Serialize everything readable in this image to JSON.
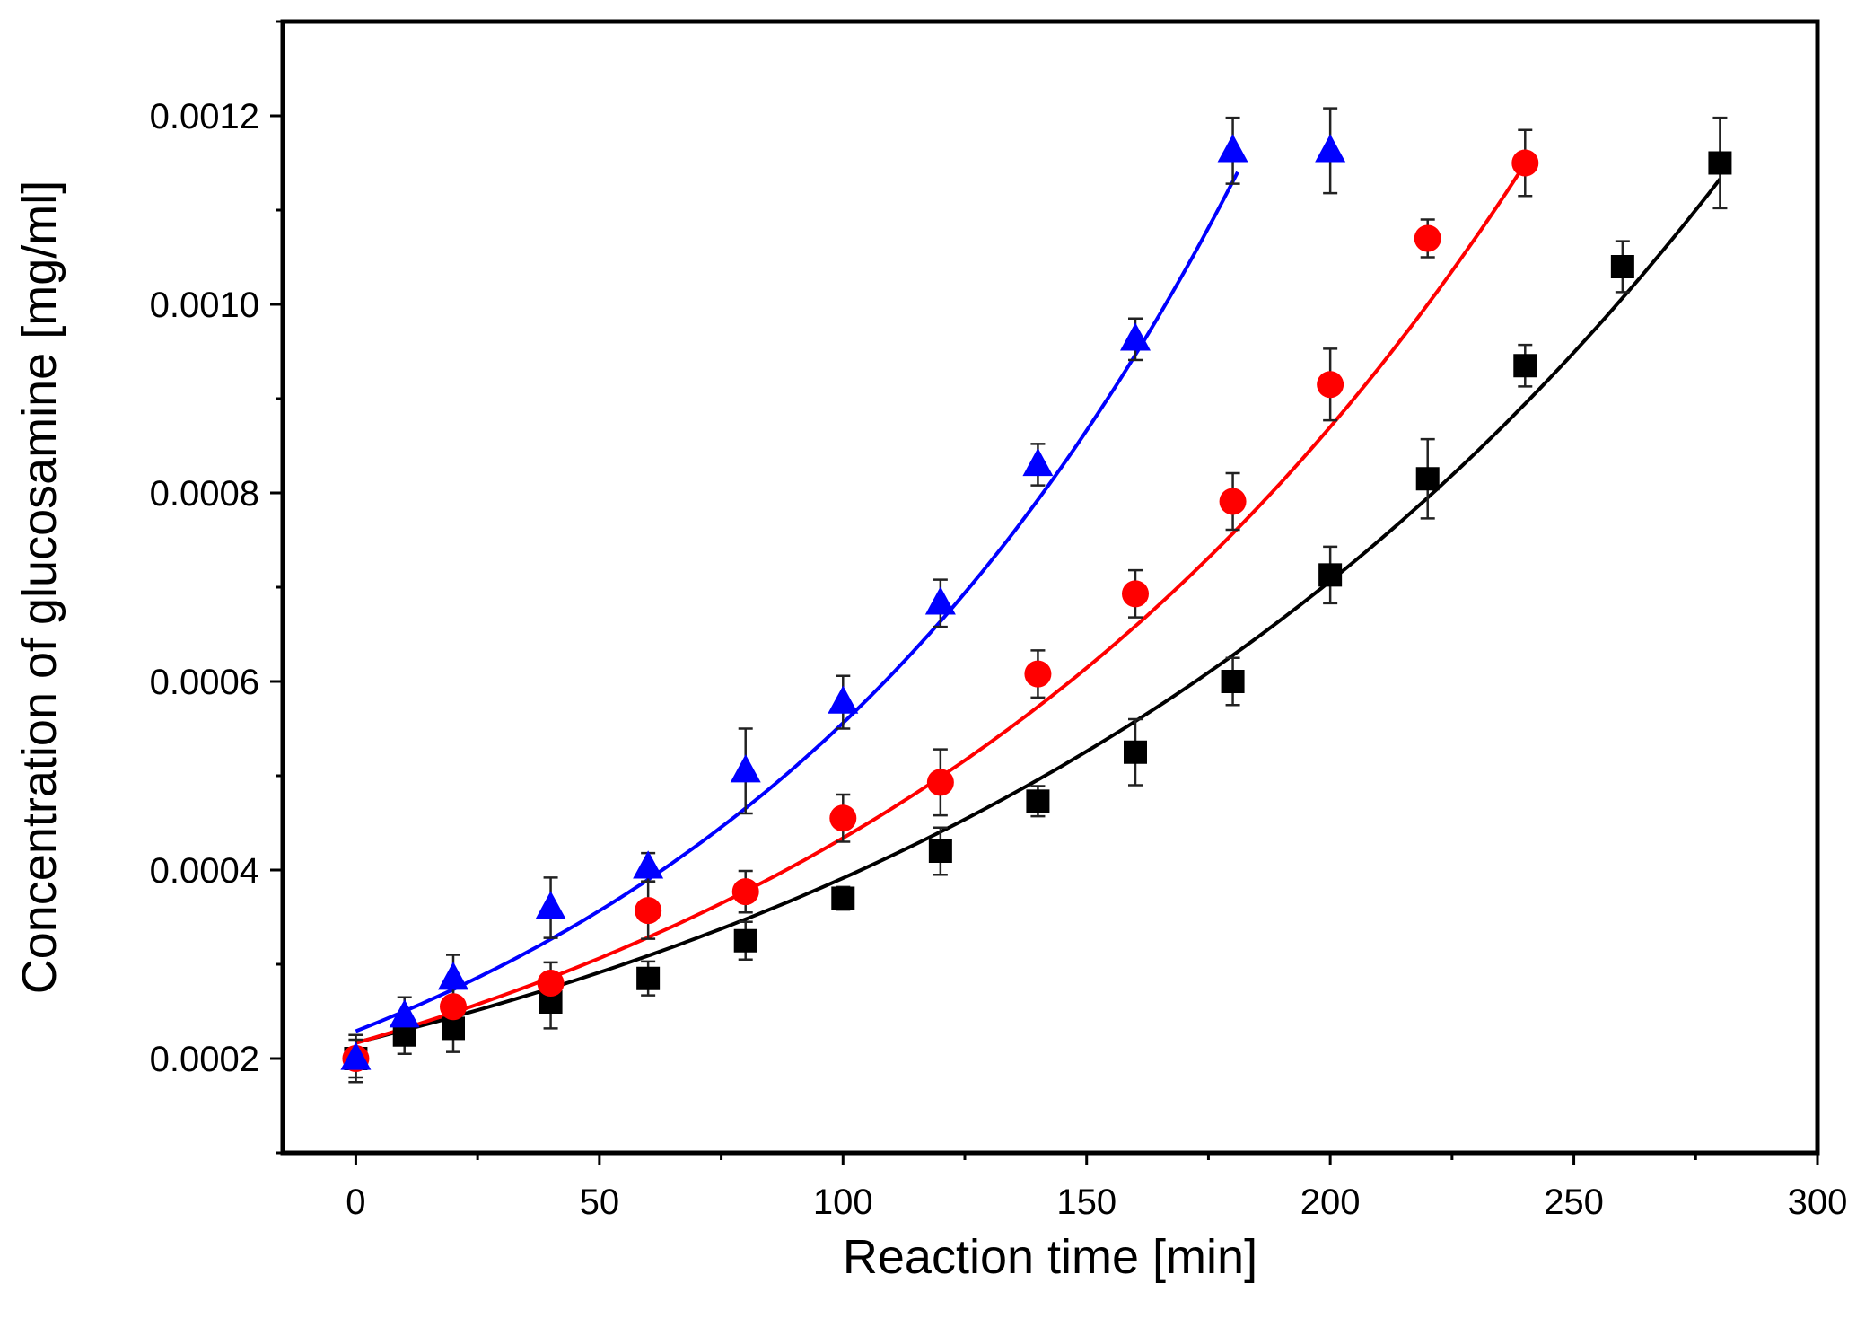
{
  "chart_data": {
    "type": "scatter",
    "title": "",
    "xlabel": "Reaction time [min]",
    "ylabel": "Concentration of glucosamine [mg/ml]",
    "xlim": [
      -15,
      300
    ],
    "ylim": [
      0.0001,
      0.0013
    ],
    "xticks": [
      0,
      50,
      100,
      150,
      200,
      250,
      300
    ],
    "xtick_labels": [
      "0",
      "50",
      "100",
      "150",
      "200",
      "250",
      "300"
    ],
    "yticks": [
      0.0002,
      0.0004,
      0.0006,
      0.0008,
      0.001,
      0.0012
    ],
    "ytick_labels": [
      "0.0002",
      "0.0004",
      "0.0006",
      "0.0008",
      "0.0010",
      "0.0012"
    ],
    "series": [
      {
        "name": "series-black-squares",
        "color": "#000000",
        "marker": "square",
        "x": [
          0,
          10,
          20,
          40,
          60,
          80,
          100,
          120,
          140,
          160,
          180,
          200,
          220,
          240,
          260,
          280
        ],
        "y": [
          0.0002,
          0.000225,
          0.000232,
          0.00026,
          0.000285,
          0.000325,
          0.00037,
          0.00042,
          0.000473,
          0.000525,
          0.0006,
          0.000713,
          0.000815,
          0.000935,
          0.00104,
          0.00115
        ],
        "err": [
          2.5e-05,
          2e-05,
          2.5e-05,
          2.8e-05,
          1.8e-05,
          2e-05,
          1.2e-05,
          2.5e-05,
          1.6e-05,
          3.5e-05,
          2.5e-05,
          3e-05,
          4.2e-05,
          2.2e-05,
          2.7e-05,
          4.8e-05
        ],
        "fit": {
          "a": 0.0002169,
          "r": 0.005904,
          "x_max": 280
        }
      },
      {
        "name": "series-red-circles",
        "color": "#ff0000",
        "marker": "circle",
        "x": [
          0,
          20,
          40,
          60,
          80,
          100,
          120,
          140,
          160,
          180,
          200,
          220,
          240
        ],
        "y": [
          0.0002,
          0.000255,
          0.00028,
          0.000357,
          0.000377,
          0.000455,
          0.000493,
          0.000608,
          0.000693,
          0.000791,
          0.000915,
          0.00107,
          0.00115
        ],
        "err": [
          2.5e-05,
          2.2e-05,
          2.2e-05,
          3e-05,
          2.2e-05,
          2.5e-05,
          3.5e-05,
          2.5e-05,
          2.5e-05,
          3e-05,
          3.8e-05,
          2e-05,
          3.5e-05
        ],
        "fit": {
          "a": 0.0002164,
          "r": 0.006957,
          "x_max": 240
        }
      },
      {
        "name": "series-blue-triangles",
        "color": "#0000ff",
        "marker": "triangle",
        "x": [
          0,
          10,
          20,
          40,
          60,
          80,
          100,
          120,
          140,
          160,
          180,
          200
        ],
        "y": [
          0.0002,
          0.000245,
          0.000285,
          0.00036,
          0.000403,
          0.000505,
          0.000578,
          0.000683,
          0.00083,
          0.000963,
          0.001163,
          0.001163
        ],
        "err": [
          2e-05,
          2e-05,
          2.5e-05,
          3.2e-05,
          1.5e-05,
          4.5e-05,
          2.8e-05,
          2.5e-05,
          2.2e-05,
          2.2e-05,
          3.5e-05,
          4.5e-05
        ],
        "fit": {
          "a": 0.000229,
          "r": 0.008869,
          "x_max": 181
        }
      }
    ]
  }
}
